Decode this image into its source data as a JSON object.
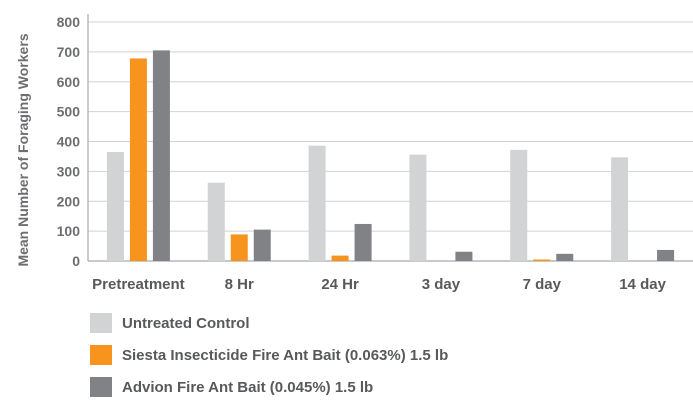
{
  "chart_data": {
    "type": "bar",
    "title": "",
    "xlabel": "",
    "ylabel": "Mean Number of Foraging Workers",
    "ylim": [
      0,
      800
    ],
    "yticks": [
      0,
      100,
      200,
      300,
      400,
      500,
      600,
      700,
      800
    ],
    "grid": true,
    "legend_position": "bottom",
    "categories": [
      "Pretreatment",
      "8 Hr",
      "24 Hr",
      "3 day",
      "7 day",
      "14 day"
    ],
    "series": [
      {
        "name": "Untreated Control",
        "color": "#d1d3d4",
        "values": [
          365,
          262,
          386,
          356,
          372,
          347
        ]
      },
      {
        "name": "Siesta Insecticide Fire Ant Bait (0.063%) 1.5 lb",
        "color": "#f7941d",
        "values": [
          678,
          89,
          18,
          0,
          5,
          0
        ]
      },
      {
        "name": "Advion Fire Ant Bait (0.045%) 1.5 lb",
        "color": "#808285",
        "values": [
          705,
          105,
          124,
          31,
          24,
          37
        ]
      }
    ]
  }
}
